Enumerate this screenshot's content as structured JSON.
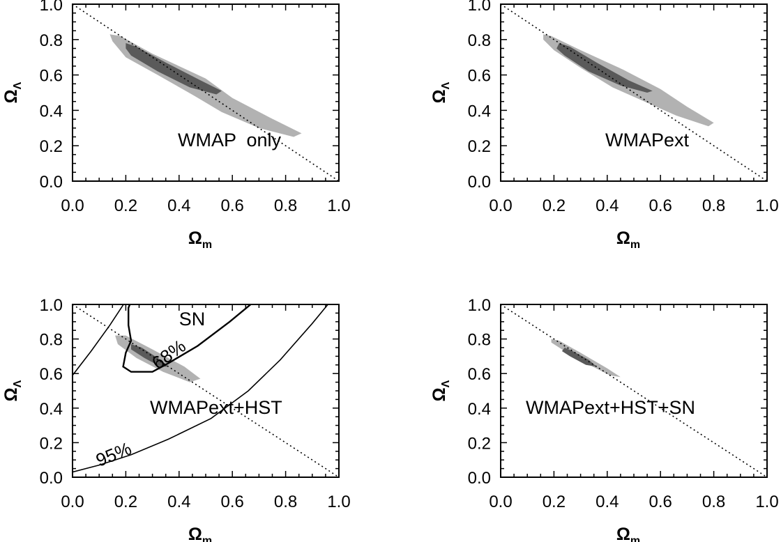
{
  "chart_data": [
    {
      "type": "contour",
      "panel_label": "WMAP  only",
      "xlabel": "Ω",
      "xlabel_sub": "m",
      "ylabel": "Ω",
      "ylabel_sub": "Λ",
      "xlim": [
        0.0,
        1.0
      ],
      "ylim": [
        0.0,
        1.0
      ],
      "xticks": [
        "0.0",
        "0.2",
        "0.4",
        "0.6",
        "0.8",
        "1.0"
      ],
      "yticks": [
        "0.0",
        "0.2",
        "0.4",
        "0.6",
        "0.8",
        "1.0"
      ],
      "flat_line": [
        [
          0.0,
          1.0
        ],
        [
          1.0,
          0.0
        ]
      ],
      "regions": [
        {
          "level": "95%",
          "color": "#b2b2b2",
          "points": [
            [
              0.14,
              0.83
            ],
            [
              0.18,
              0.82
            ],
            [
              0.3,
              0.72
            ],
            [
              0.5,
              0.58
            ],
            [
              0.6,
              0.47
            ],
            [
              0.74,
              0.36
            ],
            [
              0.86,
              0.27
            ],
            [
              0.83,
              0.25
            ],
            [
              0.7,
              0.3
            ],
            [
              0.56,
              0.39
            ],
            [
              0.46,
              0.48
            ],
            [
              0.32,
              0.6
            ],
            [
              0.2,
              0.7
            ],
            [
              0.15,
              0.79
            ]
          ]
        },
        {
          "level": "68%",
          "color": "#5a5a5a",
          "points": [
            [
              0.2,
              0.78
            ],
            [
              0.24,
              0.76
            ],
            [
              0.35,
              0.67
            ],
            [
              0.48,
              0.57
            ],
            [
              0.56,
              0.51
            ],
            [
              0.54,
              0.49
            ],
            [
              0.44,
              0.53
            ],
            [
              0.32,
              0.62
            ],
            [
              0.22,
              0.71
            ],
            [
              0.2,
              0.75
            ]
          ]
        }
      ]
    },
    {
      "type": "contour",
      "panel_label": "WMAPext",
      "xlabel": "Ω",
      "xlabel_sub": "m",
      "ylabel": "Ω",
      "ylabel_sub": "Λ",
      "xlim": [
        0.0,
        1.0
      ],
      "ylim": [
        0.0,
        1.0
      ],
      "xticks": [
        "0.0",
        "0.2",
        "0.4",
        "0.6",
        "0.8",
        "1.0"
      ],
      "yticks": [
        "0.0",
        "0.2",
        "0.4",
        "0.6",
        "0.8",
        "1.0"
      ],
      "flat_line": [
        [
          0.0,
          1.0
        ],
        [
          1.0,
          0.0
        ]
      ],
      "regions": [
        {
          "level": "95%",
          "color": "#b2b2b2",
          "points": [
            [
              0.16,
              0.83
            ],
            [
              0.19,
              0.82
            ],
            [
              0.3,
              0.74
            ],
            [
              0.46,
              0.63
            ],
            [
              0.6,
              0.52
            ],
            [
              0.7,
              0.42
            ],
            [
              0.8,
              0.33
            ],
            [
              0.78,
              0.31
            ],
            [
              0.66,
              0.37
            ],
            [
              0.54,
              0.45
            ],
            [
              0.42,
              0.53
            ],
            [
              0.3,
              0.64
            ],
            [
              0.2,
              0.74
            ],
            [
              0.16,
              0.8
            ]
          ]
        },
        {
          "level": "68%",
          "color": "#5a5a5a",
          "points": [
            [
              0.22,
              0.78
            ],
            [
              0.26,
              0.76
            ],
            [
              0.36,
              0.67
            ],
            [
              0.48,
              0.57
            ],
            [
              0.57,
              0.51
            ],
            [
              0.55,
              0.5
            ],
            [
              0.45,
              0.54
            ],
            [
              0.33,
              0.62
            ],
            [
              0.24,
              0.71
            ],
            [
              0.21,
              0.75
            ]
          ]
        }
      ]
    },
    {
      "type": "contour",
      "panel_label": "WMAPext+HST",
      "annotation": "SN",
      "contour_labels": [
        "68%",
        "95%"
      ],
      "xlabel": "Ω",
      "xlabel_sub": "m",
      "ylabel": "Ω",
      "ylabel_sub": "Λ",
      "xlim": [
        0.0,
        1.0
      ],
      "ylim": [
        0.0,
        1.0
      ],
      "xticks": [
        "0.0",
        "0.2",
        "0.4",
        "0.6",
        "0.8",
        "1.0"
      ],
      "yticks": [
        "0.0",
        "0.2",
        "0.4",
        "0.6",
        "0.8",
        "1.0"
      ],
      "flat_line": [
        [
          0.0,
          1.0
        ],
        [
          1.0,
          0.0
        ]
      ],
      "regions": [
        {
          "level": "95%",
          "color": "#b2b2b2",
          "points": [
            [
              0.16,
              0.82
            ],
            [
              0.2,
              0.82
            ],
            [
              0.3,
              0.74
            ],
            [
              0.42,
              0.64
            ],
            [
              0.48,
              0.57
            ],
            [
              0.44,
              0.55
            ],
            [
              0.34,
              0.61
            ],
            [
              0.24,
              0.69
            ],
            [
              0.17,
              0.77
            ]
          ]
        },
        {
          "level": "68%",
          "color": "#5a5a5a",
          "points": [
            [
              0.22,
              0.77
            ],
            [
              0.26,
              0.75
            ],
            [
              0.33,
              0.68
            ],
            [
              0.36,
              0.64
            ],
            [
              0.33,
              0.64
            ],
            [
              0.27,
              0.69
            ],
            [
              0.22,
              0.74
            ]
          ]
        }
      ],
      "sn_contours": [
        {
          "label": "68%",
          "points": [
            [
              0.23,
              1.06
            ],
            [
              0.21,
              0.98
            ],
            [
              0.21,
              0.88
            ],
            [
              0.22,
              0.79
            ],
            [
              0.2,
              0.72
            ],
            [
              0.19,
              0.64
            ],
            [
              0.22,
              0.61
            ],
            [
              0.3,
              0.61
            ],
            [
              0.36,
              0.66
            ],
            [
              0.47,
              0.76
            ],
            [
              0.59,
              0.9
            ],
            [
              0.7,
              1.04
            ]
          ]
        },
        {
          "label": "95%",
          "points": [
            [
              0.0,
              0.59
            ],
            [
              0.07,
              0.73
            ],
            [
              0.14,
              0.88
            ],
            [
              0.2,
              1.02
            ]
          ]
        },
        {
          "label": "95%",
          "points": [
            [
              0.0,
              0.03
            ],
            [
              0.1,
              0.07
            ],
            [
              0.22,
              0.13
            ],
            [
              0.36,
              0.22
            ],
            [
              0.52,
              0.34
            ],
            [
              0.66,
              0.5
            ],
            [
              0.78,
              0.68
            ],
            [
              0.9,
              0.89
            ],
            [
              0.98,
              1.04
            ]
          ]
        }
      ]
    },
    {
      "type": "contour",
      "panel_label": "WMAPext+HST+SN",
      "xlabel": "Ω",
      "xlabel_sub": "m",
      "ylabel": "Ω",
      "ylabel_sub": "Λ",
      "xlim": [
        0.0,
        1.0
      ],
      "ylim": [
        0.0,
        1.0
      ],
      "xticks": [
        "0.0",
        "0.2",
        "0.4",
        "0.6",
        "0.8",
        "1.0"
      ],
      "yticks": [
        "0.0",
        "0.2",
        "0.4",
        "0.6",
        "0.8",
        "1.0"
      ],
      "flat_line": [
        [
          0.0,
          1.0
        ],
        [
          1.0,
          0.0
        ]
      ],
      "regions": [
        {
          "level": "95%",
          "color": "#b2b2b2",
          "points": [
            [
              0.19,
              0.8
            ],
            [
              0.22,
              0.79
            ],
            [
              0.3,
              0.72
            ],
            [
              0.4,
              0.63
            ],
            [
              0.45,
              0.58
            ],
            [
              0.41,
              0.59
            ],
            [
              0.32,
              0.66
            ],
            [
              0.24,
              0.73
            ],
            [
              0.19,
              0.78
            ]
          ]
        },
        {
          "level": "68%",
          "color": "#5a5a5a",
          "points": [
            [
              0.24,
              0.75
            ],
            [
              0.27,
              0.73
            ],
            [
              0.33,
              0.68
            ],
            [
              0.36,
              0.64
            ],
            [
              0.32,
              0.65
            ],
            [
              0.26,
              0.7
            ],
            [
              0.23,
              0.73
            ]
          ]
        }
      ]
    }
  ]
}
